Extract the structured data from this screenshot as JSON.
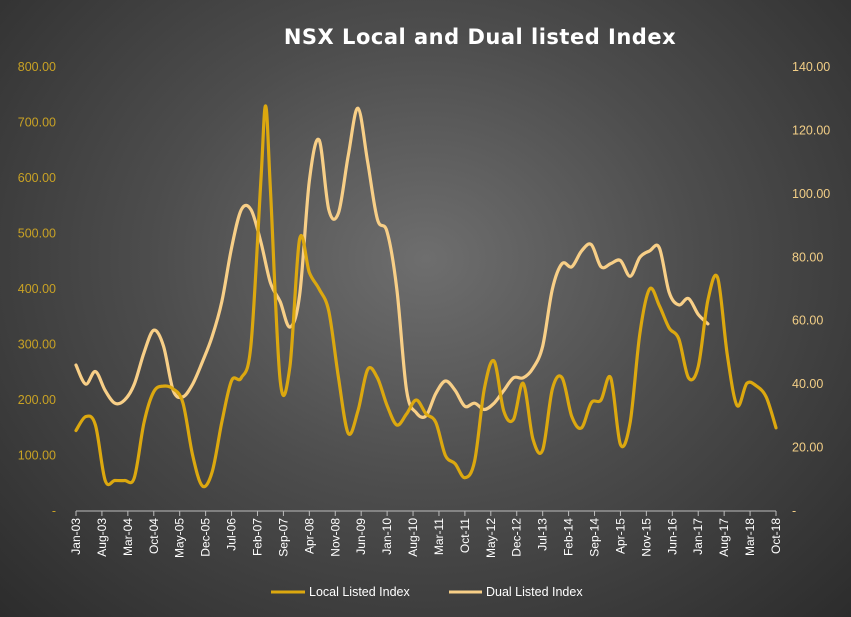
{
  "chart_data": {
    "type": "line",
    "title": "NSX Local and Dual listed Index",
    "x_tick_labels": [
      "Jan-03",
      "Aug-03",
      "Mar-04",
      "Oct-04",
      "May-05",
      "Dec-05",
      "Jul-06",
      "Feb-07",
      "Sep-07",
      "Apr-08",
      "Nov-08",
      "Jun-09",
      "Jan-10",
      "Aug-10",
      "Mar-11",
      "Oct-11",
      "May-12",
      "Dec-12",
      "Jul-13",
      "Feb-14",
      "Sep-14",
      "Apr-15",
      "Nov-15",
      "Jun-16",
      "Jan-17",
      "Aug-17",
      "Mar-18",
      "Oct-18"
    ],
    "y_left": {
      "min": 0,
      "max": 800,
      "ticks": [
        "-",
        "100.00",
        "200.00",
        "300.00",
        "400.00",
        "500.00",
        "600.00",
        "700.00",
        "800.00"
      ],
      "color": "#dca80f"
    },
    "y_right": {
      "min": 0,
      "max": 140,
      "ticks": [
        "-",
        "20.00",
        "40.00",
        "60.00",
        "80.00",
        "100.00",
        "120.00",
        "140.00"
      ],
      "color": "#f8cf87"
    },
    "legend_position": "bottom",
    "grid": false,
    "series": [
      {
        "name": "Local Listed Index",
        "axis": "left",
        "color": "#dca80f",
        "points": [
          [
            0,
            145
          ],
          [
            1,
            170
          ],
          [
            2,
            155
          ],
          [
            3,
            55
          ],
          [
            4,
            55
          ],
          [
            5,
            55
          ],
          [
            6,
            60
          ],
          [
            7,
            160
          ],
          [
            8,
            215
          ],
          [
            9,
            225
          ],
          [
            10,
            220
          ],
          [
            11,
            195
          ],
          [
            12,
            100
          ],
          [
            13,
            45
          ],
          [
            14,
            70
          ],
          [
            15,
            160
          ],
          [
            16,
            235
          ],
          [
            17,
            240
          ],
          [
            18,
            300
          ],
          [
            19,
            590
          ],
          [
            19.5,
            730
          ],
          [
            20,
            580
          ],
          [
            21,
            235
          ],
          [
            22,
            260
          ],
          [
            23,
            490
          ],
          [
            24,
            430
          ],
          [
            25,
            400
          ],
          [
            26,
            360
          ],
          [
            27,
            240
          ],
          [
            28,
            140
          ],
          [
            29,
            180
          ],
          [
            30,
            255
          ],
          [
            31,
            240
          ],
          [
            32,
            190
          ],
          [
            33,
            155
          ],
          [
            34,
            175
          ],
          [
            35,
            200
          ],
          [
            36,
            175
          ],
          [
            37,
            160
          ],
          [
            38,
            100
          ],
          [
            39,
            85
          ],
          [
            40,
            60
          ],
          [
            41,
            90
          ],
          [
            42,
            220
          ],
          [
            43,
            270
          ],
          [
            44,
            180
          ],
          [
            45,
            165
          ],
          [
            46,
            230
          ],
          [
            47,
            130
          ],
          [
            48,
            110
          ],
          [
            49,
            220
          ],
          [
            50,
            240
          ],
          [
            51,
            170
          ],
          [
            52,
            150
          ],
          [
            53,
            195
          ],
          [
            54,
            200
          ],
          [
            55,
            240
          ],
          [
            56,
            120
          ],
          [
            57,
            160
          ],
          [
            58,
            320
          ],
          [
            59,
            400
          ],
          [
            60,
            370
          ],
          [
            61,
            330
          ],
          [
            62,
            310
          ],
          [
            63,
            240
          ],
          [
            64,
            260
          ],
          [
            65,
            380
          ],
          [
            66,
            420
          ],
          [
            67,
            280
          ],
          [
            68,
            190
          ],
          [
            69,
            230
          ],
          [
            70,
            225
          ],
          [
            71,
            205
          ],
          [
            72,
            150
          ]
        ]
      },
      {
        "name": "Dual Listed Index",
        "axis": "right",
        "color": "#f8cf87",
        "points": [
          [
            0,
            46
          ],
          [
            1,
            40
          ],
          [
            2,
            44
          ],
          [
            3,
            38
          ],
          [
            4,
            34
          ],
          [
            5,
            35
          ],
          [
            6,
            40
          ],
          [
            7,
            50
          ],
          [
            8,
            57
          ],
          [
            9,
            52
          ],
          [
            10,
            38
          ],
          [
            11,
            36
          ],
          [
            12,
            40
          ],
          [
            13,
            47
          ],
          [
            14,
            55
          ],
          [
            15,
            66
          ],
          [
            16,
            83
          ],
          [
            17,
            95
          ],
          [
            18,
            95
          ],
          [
            19,
            85
          ],
          [
            20,
            72
          ],
          [
            21,
            66
          ],
          [
            22,
            58
          ],
          [
            23,
            68
          ],
          [
            24,
            104
          ],
          [
            25,
            117
          ],
          [
            26,
            95
          ],
          [
            27,
            94
          ],
          [
            28,
            112
          ],
          [
            29,
            127
          ],
          [
            30,
            110
          ],
          [
            31,
            92
          ],
          [
            32,
            88
          ],
          [
            33,
            70
          ],
          [
            34,
            38
          ],
          [
            35,
            31
          ],
          [
            36,
            30
          ],
          [
            37,
            37
          ],
          [
            38,
            41
          ],
          [
            39,
            38
          ],
          [
            40,
            33
          ],
          [
            41,
            34
          ],
          [
            42,
            32
          ],
          [
            43,
            34
          ],
          [
            44,
            38
          ],
          [
            45,
            42
          ],
          [
            46,
            42
          ],
          [
            47,
            45
          ],
          [
            48,
            52
          ],
          [
            49,
            70
          ],
          [
            50,
            78
          ],
          [
            51,
            77
          ],
          [
            52,
            82
          ],
          [
            53,
            84
          ],
          [
            54,
            77
          ],
          [
            55,
            78
          ],
          [
            56,
            79
          ],
          [
            57,
            74
          ],
          [
            58,
            80
          ],
          [
            59,
            82
          ],
          [
            60,
            83
          ],
          [
            61,
            69
          ],
          [
            62,
            65
          ],
          [
            63,
            67
          ],
          [
            64,
            62
          ],
          [
            65,
            59
          ]
        ]
      }
    ]
  }
}
